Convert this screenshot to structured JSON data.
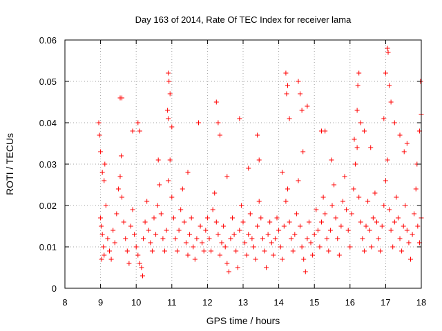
{
  "chart_data": {
    "type": "scatter",
    "title": "Day 163 of 2014, Rate Of TEC Index for receiver lama",
    "xlabel": "GPS time / hours",
    "ylabel": "ROTI / TECUs",
    "xlim": [
      8,
      18
    ],
    "ylim": [
      0,
      0.06
    ],
    "xticks": [
      8,
      9,
      10,
      11,
      12,
      13,
      14,
      15,
      16,
      17,
      18
    ],
    "yticks": [
      0,
      0.01,
      0.02,
      0.03,
      0.04,
      0.05,
      0.06
    ],
    "ytick_labels": [
      "0",
      "0.01",
      "0.02",
      "0.03",
      "0.04",
      "0.05",
      "0.06"
    ],
    "grid": true,
    "marker": "+",
    "series": [
      {
        "name": "ROTI",
        "color": "#ff0000",
        "points": [
          [
            8.95,
            0.04
          ],
          [
            8.97,
            0.037
          ],
          [
            9.0,
            0.033
          ],
          [
            9.05,
            0.028
          ],
          [
            9.1,
            0.026
          ],
          [
            9.55,
            0.046
          ],
          [
            9.6,
            0.046
          ],
          [
            9.9,
            0.038
          ],
          [
            10.05,
            0.04
          ],
          [
            10.1,
            0.038
          ],
          [
            10.9,
            0.052
          ],
          [
            10.92,
            0.05
          ],
          [
            10.95,
            0.047
          ],
          [
            10.88,
            0.043
          ],
          [
            10.9,
            0.041
          ],
          [
            11.0,
            0.039
          ],
          [
            11.75,
            0.04
          ],
          [
            12.25,
            0.045
          ],
          [
            12.3,
            0.04
          ],
          [
            12.35,
            0.037
          ],
          [
            12.9,
            0.041
          ],
          [
            13.4,
            0.037
          ],
          [
            13.45,
            0.031
          ],
          [
            14.2,
            0.052
          ],
          [
            14.25,
            0.049
          ],
          [
            14.22,
            0.047
          ],
          [
            14.3,
            0.041
          ],
          [
            14.55,
            0.05
          ],
          [
            14.6,
            0.047
          ],
          [
            14.65,
            0.043
          ],
          [
            14.8,
            0.044
          ],
          [
            15.2,
            0.038
          ],
          [
            15.3,
            0.038
          ],
          [
            16.25,
            0.052
          ],
          [
            16.22,
            0.049
          ],
          [
            16.2,
            0.043
          ],
          [
            16.3,
            0.04
          ],
          [
            16.4,
            0.038
          ],
          [
            17.05,
            0.058
          ],
          [
            17.07,
            0.057
          ],
          [
            17.0,
            0.052
          ],
          [
            17.1,
            0.049
          ],
          [
            17.15,
            0.045
          ],
          [
            16.95,
            0.041
          ],
          [
            17.25,
            0.04
          ],
          [
            17.4,
            0.037
          ],
          [
            17.98,
            0.05
          ],
          [
            18.0,
            0.042
          ],
          [
            17.95,
            0.038
          ],
          [
            17.6,
            0.035
          ],
          [
            9.0,
            0.017
          ],
          [
            9.02,
            0.015
          ],
          [
            9.05,
            0.013
          ],
          [
            9.08,
            0.01
          ],
          [
            9.1,
            0.008
          ],
          [
            9.03,
            0.007
          ],
          [
            9.15,
            0.02
          ],
          [
            9.2,
            0.012
          ],
          [
            9.25,
            0.009
          ],
          [
            9.3,
            0.007
          ],
          [
            9.35,
            0.014
          ],
          [
            9.4,
            0.011
          ],
          [
            9.45,
            0.018
          ],
          [
            9.5,
            0.024
          ],
          [
            9.55,
            0.027
          ],
          [
            9.6,
            0.022
          ],
          [
            9.65,
            0.016
          ],
          [
            9.7,
            0.012
          ],
          [
            9.75,
            0.009
          ],
          [
            9.8,
            0.006
          ],
          [
            9.85,
            0.015
          ],
          [
            9.9,
            0.019
          ],
          [
            9.95,
            0.013
          ],
          [
            10.0,
            0.01
          ],
          [
            10.05,
            0.008
          ],
          [
            10.1,
            0.006
          ],
          [
            10.15,
            0.005
          ],
          [
            10.18,
            0.003
          ],
          [
            10.2,
            0.012
          ],
          [
            10.25,
            0.016
          ],
          [
            10.3,
            0.021
          ],
          [
            10.35,
            0.014
          ],
          [
            10.4,
            0.011
          ],
          [
            10.45,
            0.009
          ],
          [
            10.5,
            0.017
          ],
          [
            10.55,
            0.013
          ],
          [
            10.6,
            0.02
          ],
          [
            10.65,
            0.025
          ],
          [
            10.7,
            0.018
          ],
          [
            10.75,
            0.012
          ],
          [
            10.8,
            0.009
          ],
          [
            10.85,
            0.014
          ],
          [
            10.9,
            0.026
          ],
          [
            10.95,
            0.031
          ],
          [
            11.0,
            0.022
          ],
          [
            11.05,
            0.017
          ],
          [
            11.1,
            0.012
          ],
          [
            11.15,
            0.009
          ],
          [
            11.2,
            0.014
          ],
          [
            11.25,
            0.019
          ],
          [
            11.3,
            0.024
          ],
          [
            11.35,
            0.016
          ],
          [
            11.4,
            0.011
          ],
          [
            11.45,
            0.008
          ],
          [
            11.5,
            0.013
          ],
          [
            11.55,
            0.017
          ],
          [
            11.6,
            0.01
          ],
          [
            11.65,
            0.007
          ],
          [
            11.7,
            0.012
          ],
          [
            11.8,
            0.015
          ],
          [
            11.85,
            0.011
          ],
          [
            11.9,
            0.009
          ],
          [
            11.95,
            0.014
          ],
          [
            12.0,
            0.017
          ],
          [
            12.05,
            0.012
          ],
          [
            12.1,
            0.009
          ],
          [
            12.15,
            0.019
          ],
          [
            12.2,
            0.023
          ],
          [
            12.25,
            0.016
          ],
          [
            12.3,
            0.013
          ],
          [
            12.35,
            0.008
          ],
          [
            12.4,
            0.011
          ],
          [
            12.45,
            0.015
          ],
          [
            12.5,
            0.01
          ],
          [
            12.55,
            0.006
          ],
          [
            12.6,
            0.004
          ],
          [
            12.65,
            0.012
          ],
          [
            12.7,
            0.017
          ],
          [
            12.75,
            0.013
          ],
          [
            12.8,
            0.009
          ],
          [
            12.85,
            0.005
          ],
          [
            12.9,
            0.014
          ],
          [
            12.95,
            0.02
          ],
          [
            13.0,
            0.016
          ],
          [
            13.05,
            0.011
          ],
          [
            13.1,
            0.008
          ],
          [
            13.15,
            0.013
          ],
          [
            13.2,
            0.018
          ],
          [
            13.25,
            0.012
          ],
          [
            13.3,
            0.01
          ],
          [
            13.35,
            0.007
          ],
          [
            13.4,
            0.015
          ],
          [
            13.45,
            0.021
          ],
          [
            13.5,
            0.017
          ],
          [
            13.55,
            0.012
          ],
          [
            13.6,
            0.009
          ],
          [
            13.65,
            0.005
          ],
          [
            13.7,
            0.013
          ],
          [
            13.75,
            0.016
          ],
          [
            13.8,
            0.011
          ],
          [
            13.85,
            0.008
          ],
          [
            13.9,
            0.012
          ],
          [
            13.95,
            0.017
          ],
          [
            14.0,
            0.014
          ],
          [
            14.05,
            0.01
          ],
          [
            14.1,
            0.007
          ],
          [
            14.15,
            0.015
          ],
          [
            14.2,
            0.021
          ],
          [
            14.25,
            0.024
          ],
          [
            14.3,
            0.016
          ],
          [
            14.35,
            0.012
          ],
          [
            14.4,
            0.009
          ],
          [
            14.45,
            0.013
          ],
          [
            14.5,
            0.018
          ],
          [
            14.55,
            0.026
          ],
          [
            14.6,
            0.015
          ],
          [
            14.65,
            0.01
          ],
          [
            14.7,
            0.007
          ],
          [
            14.75,
            0.004
          ],
          [
            14.8,
            0.012
          ],
          [
            14.85,
            0.016
          ],
          [
            14.9,
            0.011
          ],
          [
            14.95,
            0.008
          ],
          [
            15.0,
            0.013
          ],
          [
            15.05,
            0.019
          ],
          [
            15.1,
            0.014
          ],
          [
            15.15,
            0.01
          ],
          [
            15.2,
            0.016
          ],
          [
            15.25,
            0.022
          ],
          [
            15.3,
            0.018
          ],
          [
            15.35,
            0.012
          ],
          [
            15.4,
            0.009
          ],
          [
            15.45,
            0.014
          ],
          [
            15.5,
            0.02
          ],
          [
            15.55,
            0.025
          ],
          [
            15.6,
            0.017
          ],
          [
            15.65,
            0.012
          ],
          [
            15.7,
            0.008
          ],
          [
            15.75,
            0.015
          ],
          [
            15.8,
            0.021
          ],
          [
            15.85,
            0.027
          ],
          [
            15.9,
            0.019
          ],
          [
            15.95,
            0.014
          ],
          [
            16.0,
            0.01
          ],
          [
            16.05,
            0.018
          ],
          [
            16.1,
            0.024
          ],
          [
            16.15,
            0.03
          ],
          [
            16.2,
            0.034
          ],
          [
            16.25,
            0.022
          ],
          [
            16.3,
            0.016
          ],
          [
            16.35,
            0.012
          ],
          [
            16.4,
            0.009
          ],
          [
            16.45,
            0.015
          ],
          [
            16.5,
            0.021
          ],
          [
            16.55,
            0.014
          ],
          [
            16.6,
            0.01
          ],
          [
            16.65,
            0.017
          ],
          [
            16.7,
            0.023
          ],
          [
            16.75,
            0.016
          ],
          [
            16.8,
            0.012
          ],
          [
            16.85,
            0.009
          ],
          [
            16.9,
            0.015
          ],
          [
            16.95,
            0.02
          ],
          [
            17.0,
            0.026
          ],
          [
            17.05,
            0.031
          ],
          [
            17.1,
            0.019
          ],
          [
            17.15,
            0.014
          ],
          [
            17.2,
            0.01
          ],
          [
            17.25,
            0.016
          ],
          [
            17.3,
            0.022
          ],
          [
            17.35,
            0.017
          ],
          [
            17.4,
            0.012
          ],
          [
            17.45,
            0.009
          ],
          [
            17.5,
            0.015
          ],
          [
            17.55,
            0.02
          ],
          [
            17.6,
            0.014
          ],
          [
            17.65,
            0.011
          ],
          [
            17.7,
            0.007
          ],
          [
            17.75,
            0.013
          ],
          [
            17.8,
            0.018
          ],
          [
            17.85,
            0.024
          ],
          [
            17.9,
            0.015
          ],
          [
            17.95,
            0.011
          ],
          [
            18.0,
            0.017
          ],
          [
            9.12,
            0.03
          ],
          [
            9.58,
            0.032
          ],
          [
            10.62,
            0.031
          ],
          [
            11.45,
            0.028
          ],
          [
            12.55,
            0.027
          ],
          [
            13.15,
            0.029
          ],
          [
            14.1,
            0.028
          ],
          [
            14.68,
            0.033
          ],
          [
            15.48,
            0.031
          ],
          [
            16.12,
            0.036
          ],
          [
            16.58,
            0.034
          ],
          [
            17.52,
            0.033
          ],
          [
            17.88,
            0.03
          ]
        ]
      }
    ]
  }
}
